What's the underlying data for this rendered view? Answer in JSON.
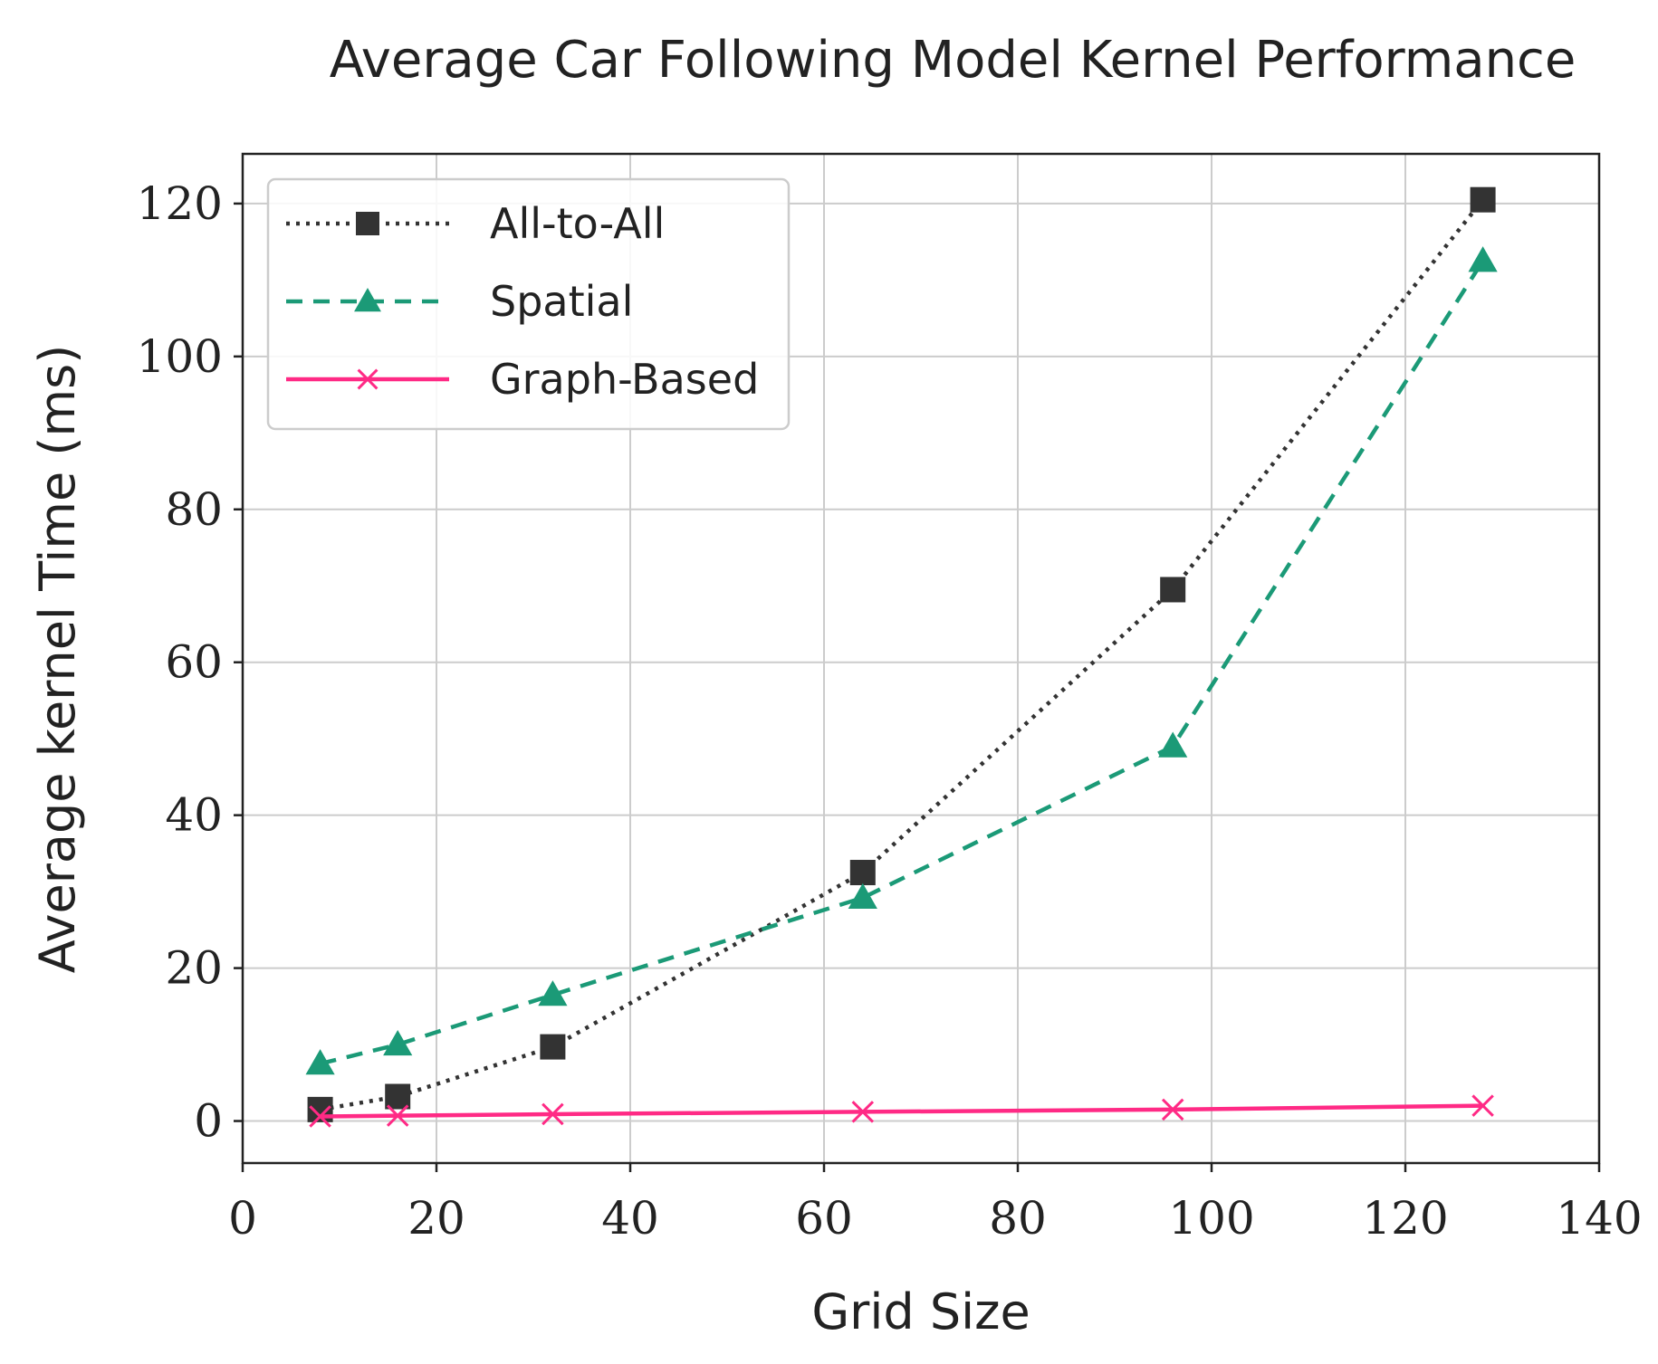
{
  "chart_data": {
    "type": "line",
    "title": "Average Car Following Model Kernel Performance",
    "xlabel": "Grid Size",
    "ylabel": "Average kernel Time (ms)",
    "xlim": [
      0,
      140
    ],
    "ylim": [
      -5.5,
      126.5
    ],
    "xticks": [
      0,
      20,
      40,
      60,
      80,
      100,
      120,
      140
    ],
    "yticks": [
      0,
      20,
      40,
      60,
      80,
      100,
      120
    ],
    "grid": true,
    "legend_position": "top-left",
    "series": [
      {
        "name": "All-to-All",
        "color": "#333333",
        "line_style": "dotted",
        "marker": "square",
        "x": [
          8,
          16,
          32,
          64,
          96,
          128
        ],
        "y": [
          1.5,
          3.2,
          9.7,
          32.5,
          69.5,
          120.5
        ]
      },
      {
        "name": "Spatial",
        "color": "#1b9a77",
        "line_style": "dashed",
        "marker": "triangle",
        "x": [
          8,
          16,
          32,
          64,
          96,
          128
        ],
        "y": [
          7.5,
          10.0,
          16.5,
          29.2,
          49.0,
          112.5
        ]
      },
      {
        "name": "Graph-Based",
        "color": "#ff2a85",
        "line_style": "solid",
        "marker": "x",
        "x": [
          8,
          16,
          32,
          64,
          96,
          128
        ],
        "y": [
          0.6,
          0.7,
          0.9,
          1.2,
          1.5,
          2.0
        ]
      }
    ]
  }
}
